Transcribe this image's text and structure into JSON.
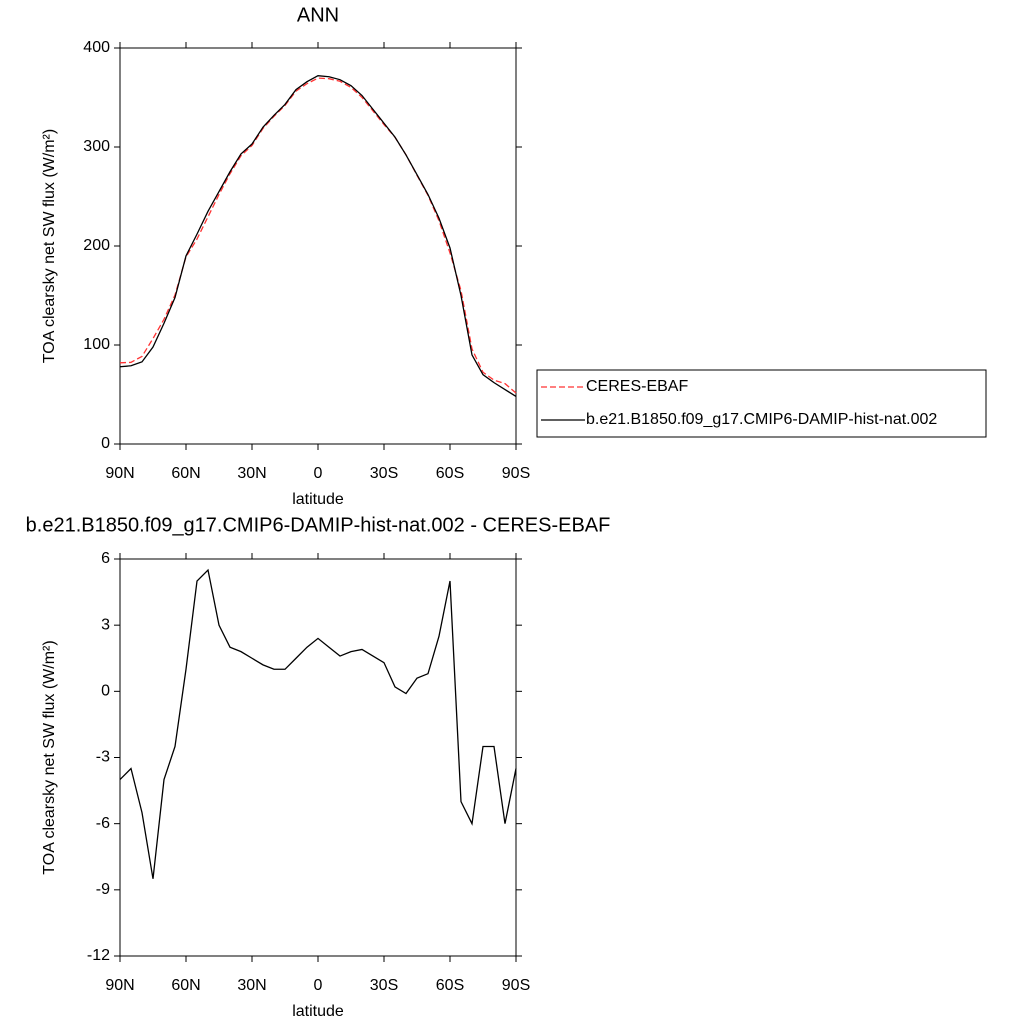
{
  "chart_data": [
    {
      "type": "line",
      "title": "ANN",
      "xlabel": "latitude",
      "ylabel": "TOA clearsky net SW flux (W/m²)",
      "x": [
        90,
        85,
        80,
        75,
        70,
        65,
        60,
        55,
        50,
        45,
        40,
        35,
        30,
        25,
        20,
        15,
        10,
        5,
        0,
        -5,
        -10,
        -15,
        -20,
        -25,
        -30,
        -35,
        -40,
        -45,
        -50,
        -55,
        -60,
        -65,
        -70,
        -75,
        -80,
        -85,
        -90
      ],
      "xlim": [
        90,
        -90
      ],
      "xticks": [
        {
          "value": 90,
          "label": "90N"
        },
        {
          "value": 60,
          "label": "60N"
        },
        {
          "value": 30,
          "label": "30N"
        },
        0,
        {
          "value": -30,
          "label": "30S"
        },
        {
          "value": -60,
          "label": "60S"
        },
        {
          "value": -90,
          "label": "90S"
        }
      ],
      "ylim": [
        0,
        400
      ],
      "yticks": [
        0,
        100,
        200,
        300,
        400
      ],
      "legend": "right",
      "series": [
        {
          "name": "CERES-EBAF",
          "color": "#ff3333",
          "linestyle": "dashed",
          "values": [
            82,
            82.5,
            88.5,
            106.5,
            126,
            150.5,
            189,
            207,
            229.5,
            252,
            273,
            291.2,
            301.5,
            318.8,
            331,
            342,
            356.5,
            364,
            369.6,
            369,
            366.4,
            360.2,
            350.1,
            336.4,
            322.7,
            309.8,
            292.1,
            271.4,
            251.2,
            225.5,
            193,
            155,
            96,
            72.5,
            64.5,
            61,
            51.5
          ]
        },
        {
          "name": "b.e21.B1850.f09_g17.CMIP6-DAMIP-hist-nat.002",
          "color": "#000000",
          "linestyle": "solid",
          "values": [
            78,
            79,
            83,
            98,
            122,
            148,
            190,
            212,
            235,
            255,
            275,
            293,
            303,
            320,
            332,
            343,
            358,
            366,
            372,
            371,
            368,
            362,
            352,
            338,
            324,
            310,
            292,
            272,
            252,
            228,
            198,
            150,
            90,
            70,
            62,
            55,
            48
          ]
        }
      ]
    },
    {
      "type": "line",
      "title": "b.e21.B1850.f09_g17.CMIP6-DAMIP-hist-nat.002 - CERES-EBAF",
      "xlabel": "latitude",
      "ylabel": "TOA clearsky net SW flux (W/m²)",
      "x": [
        90,
        85,
        80,
        75,
        70,
        65,
        60,
        55,
        50,
        45,
        40,
        35,
        30,
        25,
        20,
        15,
        10,
        5,
        0,
        -5,
        -10,
        -15,
        -20,
        -25,
        -30,
        -35,
        -40,
        -45,
        -50,
        -55,
        -60,
        -65,
        -70,
        -75,
        -80,
        -85,
        -90
      ],
      "xlim": [
        90,
        -90
      ],
      "xticks": [
        {
          "value": 90,
          "label": "90N"
        },
        {
          "value": 60,
          "label": "60N"
        },
        {
          "value": 30,
          "label": "30N"
        },
        0,
        {
          "value": -30,
          "label": "30S"
        },
        {
          "value": -60,
          "label": "60S"
        },
        {
          "value": -90,
          "label": "90S"
        }
      ],
      "ylim": [
        -12,
        6
      ],
      "yticks": [
        -12,
        -9,
        -6,
        -3,
        0,
        3,
        6
      ],
      "series": [
        {
          "color": "#000000",
          "linestyle": "solid",
          "values": [
            -4,
            -3.5,
            -5.5,
            -8.5,
            -4,
            -2.5,
            1,
            5,
            5.5,
            3,
            2,
            1.8,
            1.5,
            1.2,
            1,
            1,
            1.5,
            2,
            2.4,
            2,
            1.6,
            1.8,
            1.9,
            1.6,
            1.3,
            0.2,
            -0.1,
            0.6,
            0.8,
            2.5,
            5,
            -5,
            -6,
            -2.5,
            -2.5,
            -6,
            -3.5
          ]
        }
      ]
    }
  ]
}
